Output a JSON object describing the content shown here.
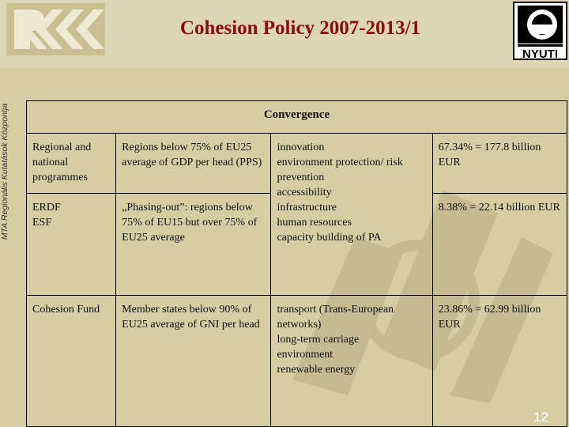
{
  "title": "Cohesion Policy 2007-2013/1",
  "side_caption": "MTA Regionális Kutatások Központja",
  "right_logo_text": "NYUTI",
  "table": {
    "header": "Convergence",
    "rows": [
      {
        "col1": "Regional and national programmes",
        "col2": "Regions below 75% of EU25 average of GDP per head (PPS)",
        "col4": "67.34% = 177.8 billion EUR"
      },
      {
        "col1": "ERDF\nESF",
        "col2": "„Phasing-out”: regions below 75% of EU15 but over 75% of EU25 average",
        "col4": "8.38% = 22.14 billion EUR"
      },
      {
        "col1": "Cohesion Fund",
        "col2": "Member states below 90% of EU25 average of GNI per head",
        "col3": "transport (Trans-European networks)\nlong-term carriage\nenvironment\nrenewable energy",
        "col4": "23.86% = 62.99 billion EUR"
      }
    ],
    "merged_col3": "innovation\nenvironment protection/ risk prevention\naccessibility\ninfrastructure\nhuman resources\ncapacity building of PA"
  },
  "page_number": "12"
}
